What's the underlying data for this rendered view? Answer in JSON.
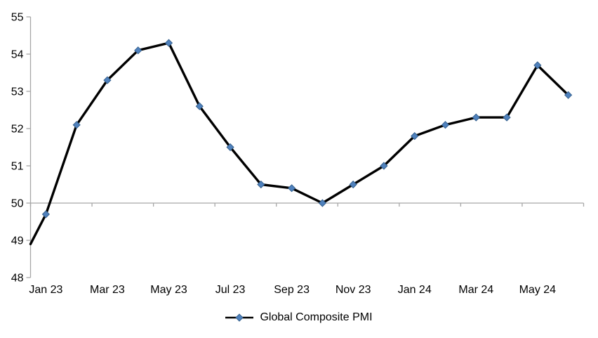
{
  "chart_data": {
    "type": "line",
    "title": "",
    "xlabel": "",
    "ylabel": "",
    "categories": [
      "Jan 23",
      "Feb 23",
      "Mar 23",
      "Apr 23",
      "May 23",
      "Jun 23",
      "Jul 23",
      "Aug 23",
      "Sep 23",
      "Oct 23",
      "Nov 23",
      "Dec 23",
      "Jan 24",
      "Feb 24",
      "Mar 24",
      "Apr 24",
      "May 24",
      "Jun 24"
    ],
    "series": [
      {
        "name": "Global Composite PMI",
        "values": [
          49.7,
          52.1,
          53.3,
          54.1,
          54.3,
          52.6,
          51.5,
          50.5,
          50.4,
          50.0,
          50.5,
          51.0,
          51.8,
          52.1,
          52.3,
          52.3,
          53.7,
          52.9
        ],
        "line_color": "#000000",
        "marker": "diamond",
        "marker_color": "#4F81BD",
        "marker_edge_color": "#36618e"
      }
    ],
    "leading_edge_value_at_axis": 48.9,
    "x_tick_labels": [
      "Jan 23",
      "Mar 23",
      "May 23",
      "Jul 23",
      "Sep 23",
      "Nov 23",
      "Jan 24",
      "Mar 24",
      "May 24"
    ],
    "y_ticks": [
      48,
      49,
      50,
      51,
      52,
      53,
      54,
      55
    ],
    "ylim": [
      48,
      55
    ],
    "category_axis_at_value": 50,
    "grid": "off",
    "axis_color": "#A6A6A6",
    "text_color": "#000000",
    "background": "#ffffff",
    "legend": {
      "position": "bottom-center",
      "label": "Global Composite PMI"
    }
  }
}
